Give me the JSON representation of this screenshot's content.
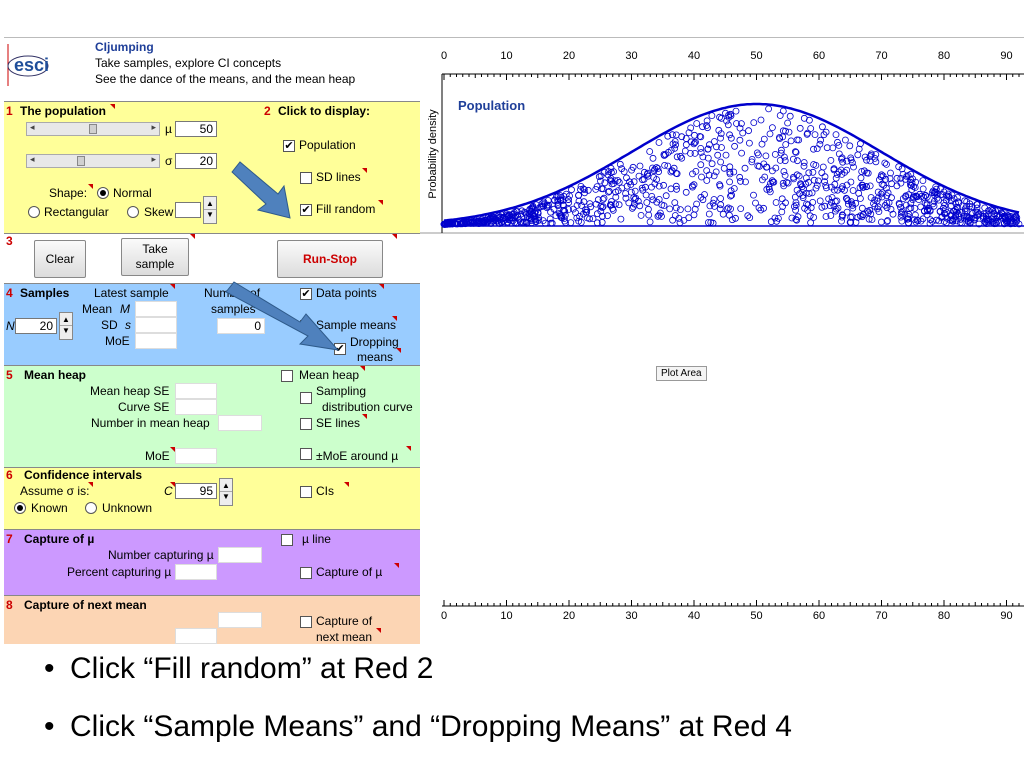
{
  "header": {
    "logo": "esci",
    "title": "CIjumping",
    "line1": "Take samples, explore CI concepts",
    "line2": "See the dance of the means, and the mean heap"
  },
  "population": {
    "num": "1",
    "title": "The population",
    "mu_symbol": "µ",
    "mu_value": "50",
    "sigma_symbol": "σ",
    "sigma_value": "20",
    "shape_label": "Shape:",
    "normal_label": "Normal",
    "rect_label": "Rectangular",
    "skew_label": "Skew",
    "display_num": "2",
    "display_title": "Click to display:",
    "population_cb": "Population",
    "sd_lines_cb": "SD lines",
    "fill_random_cb": "Fill random"
  },
  "controls": {
    "num": "3",
    "clear": "Clear",
    "take_sample": "Take sample",
    "run_stop": "Run-Stop"
  },
  "samples": {
    "num": "4",
    "title": "Samples",
    "latest": "Latest sample",
    "number_of": "Number of",
    "samples_word": "samples",
    "count": "0",
    "mean_label": "Mean",
    "mean_sym": "M",
    "sd_label": "SD",
    "sd_sym": "s",
    "moe": "MoE",
    "n_label": "N",
    "n_value": "20",
    "data_points": "Data points",
    "sample_means": "Sample means",
    "dropping": "Dropping",
    "means": "means"
  },
  "mean_heap": {
    "num": "5",
    "title": "Mean heap",
    "se": "Mean heap SE",
    "curve_se": "Curve SE",
    "number_in": "Number in mean heap",
    "moe": "MoE",
    "mean_heap_cb": "Mean heap",
    "sampling": "Sampling",
    "dist_curve": "distribution curve",
    "se_lines": "SE lines",
    "moe_around": "±MoE around µ"
  },
  "ci": {
    "num": "6",
    "title": "Confidence intervals",
    "assume": "Assume σ is:",
    "known": "Known",
    "unknown": "Unknown",
    "c_label": "C",
    "c_value": "95",
    "cis": "CIs"
  },
  "capture": {
    "num": "7",
    "title": "Capture of µ",
    "number_capturing": "Number capturing µ",
    "percent_capturing": "Percent capturing µ",
    "mu_line": "µ line",
    "capture_of_mu": "Capture of µ"
  },
  "next_mean": {
    "num": "8",
    "title": "Capture of next mean",
    "capture_of": "Capture of",
    "next_mean": "next mean"
  },
  "plot": {
    "population_label": "Population",
    "ylabel": "Probability density",
    "plot_area_tooltip": "Plot Area",
    "ticks": [
      "0",
      "10",
      "20",
      "30",
      "40",
      "50",
      "60",
      "70",
      "80",
      "90"
    ]
  },
  "colors": {
    "yellow": "#ffff99",
    "blue": "#99ccff",
    "green": "#ccffcc",
    "purple": "#cc99ff",
    "orange": "#fcd5b4",
    "curve": "#0000cc",
    "arrow": "#4f81bd"
  },
  "instructions": [
    "Click “Fill random” at Red 2",
    "Click “Sample Means” and “Dropping Means” at Red 4"
  ]
}
